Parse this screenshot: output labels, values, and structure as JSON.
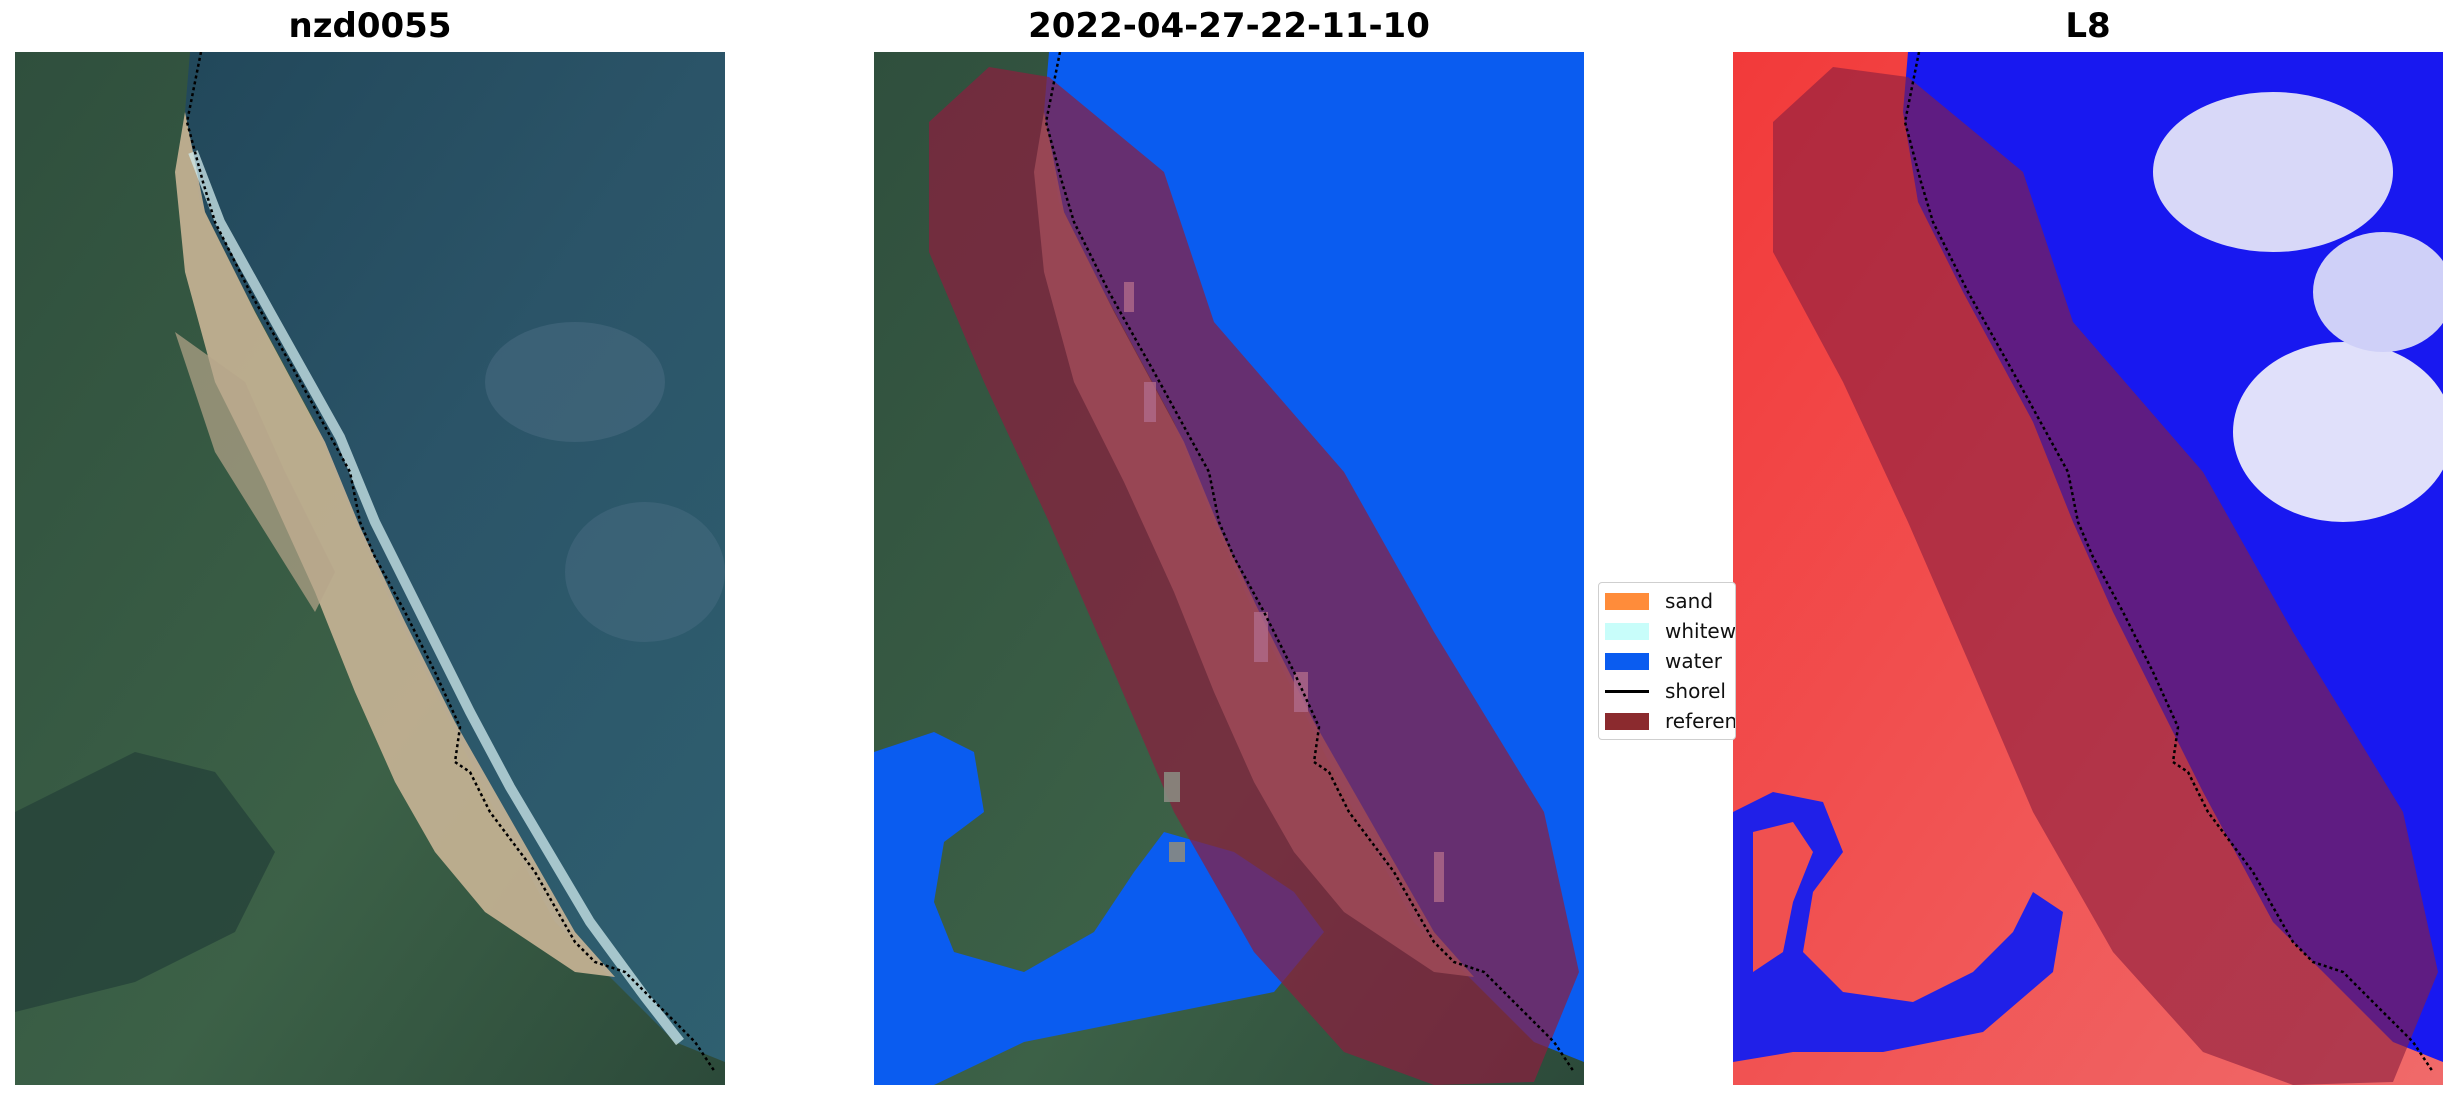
{
  "titles": {
    "panel1": "nzd0055",
    "panel2": "2022-04-27-22-11-10",
    "panel3": "L8"
  },
  "legend": {
    "items": [
      {
        "label": "sand",
        "color": "#ff8c3a"
      },
      {
        "label": "whitew",
        "color": "#c8fdfa"
      },
      {
        "label": "water",
        "color": "#0a5cf0"
      },
      {
        "label": "shorel",
        "color": "#000000"
      },
      {
        "label": "referen",
        "color": "#8b2a2e"
      }
    ]
  },
  "colors": {
    "water_class": "#0a5cf0",
    "reference_buffer": "#8b1e3f",
    "ocean_rgb": "#2a4e62",
    "land_rgb": "#3f6b4a",
    "sand_rgb": "#cdb89a"
  }
}
